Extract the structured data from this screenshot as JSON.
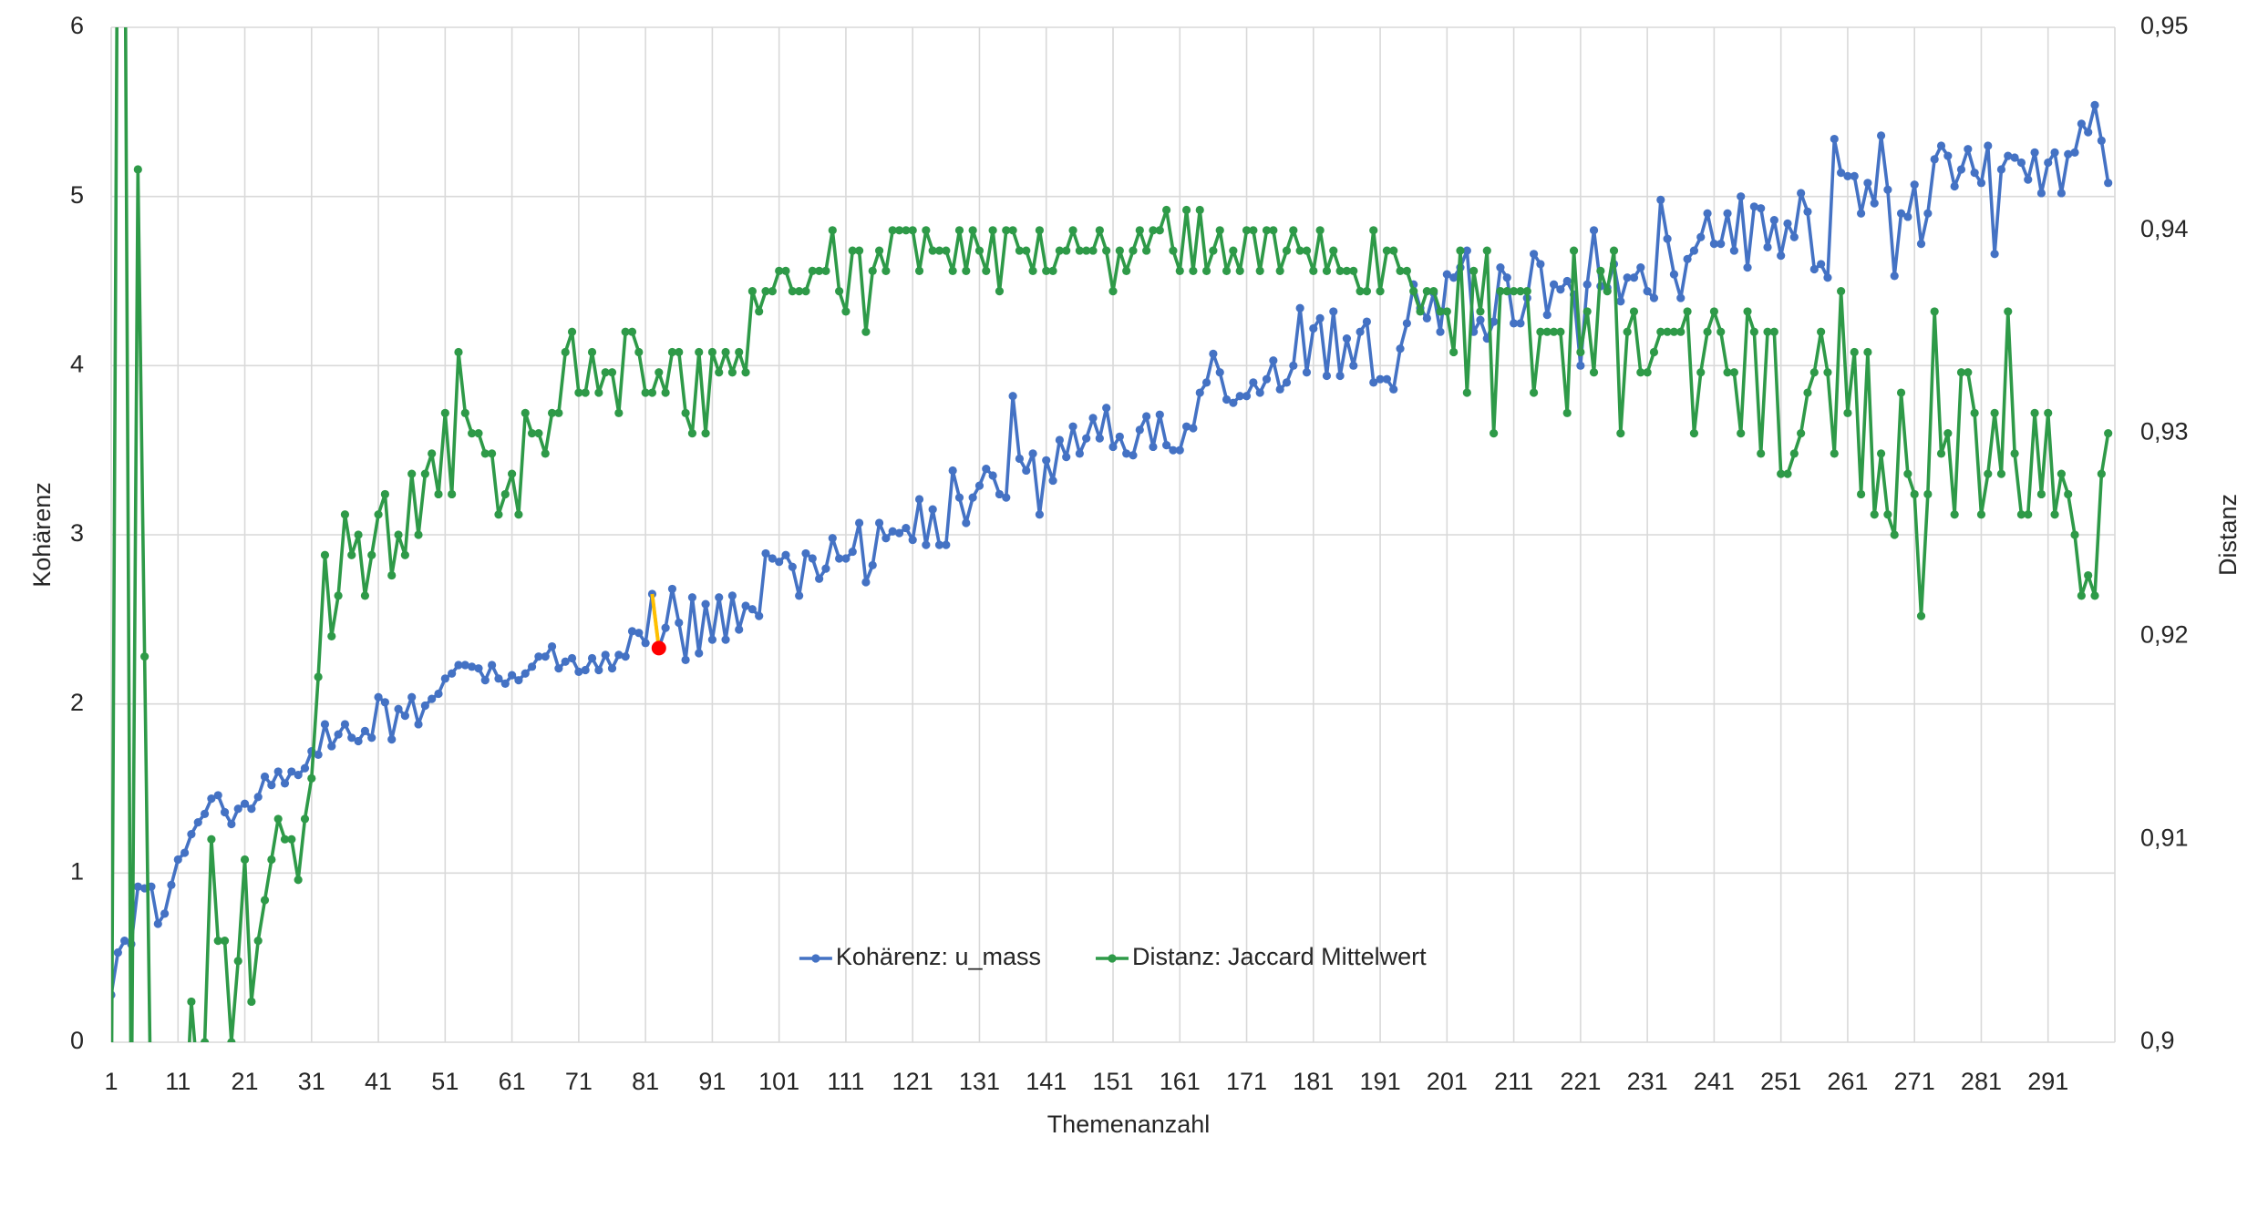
{
  "chart_data": {
    "type": "line",
    "x_label": "Themenanzahl",
    "y_label": "Kohärenz",
    "y2_label": "Distanz",
    "x": [
      1,
      2,
      3,
      4,
      5,
      6,
      7,
      8,
      9,
      10,
      11,
      12,
      13,
      14,
      15,
      16,
      17,
      18,
      19,
      20,
      21,
      22,
      23,
      24,
      25,
      26,
      27,
      28,
      29,
      30,
      31,
      32,
      33,
      34,
      35,
      36,
      37,
      38,
      39,
      40,
      41,
      42,
      43,
      44,
      45,
      46,
      47,
      48,
      49,
      50,
      51,
      52,
      53,
      54,
      55,
      56,
      57,
      58,
      59,
      60,
      61,
      62,
      63,
      64,
      65,
      66,
      67,
      68,
      69,
      70,
      71,
      72,
      73,
      74,
      75,
      76,
      77,
      78,
      79,
      80,
      81,
      82,
      83,
      84,
      85,
      86,
      87,
      88,
      89,
      90,
      91,
      92,
      93,
      94,
      95,
      96,
      97,
      98,
      99,
      100,
      101,
      102,
      103,
      104,
      105,
      106,
      107,
      108,
      109,
      110,
      111,
      112,
      113,
      114,
      115,
      116,
      117,
      118,
      119,
      120,
      121,
      122,
      123,
      124,
      125,
      126,
      127,
      128,
      129,
      130,
      131,
      132,
      133,
      134,
      135,
      136,
      137,
      138,
      139,
      140,
      141,
      142,
      143,
      144,
      145,
      146,
      147,
      148,
      149,
      150,
      151,
      152,
      153,
      154,
      155,
      156,
      157,
      158,
      159,
      160,
      161,
      162,
      163,
      164,
      165,
      166,
      167,
      168,
      169,
      170,
      171,
      172,
      173,
      174,
      175,
      176,
      177,
      178,
      179,
      180,
      181,
      182,
      183,
      184,
      185,
      186,
      187,
      188,
      189,
      190,
      191,
      192,
      193,
      194,
      195,
      196,
      197,
      198,
      199,
      200,
      201,
      202,
      203,
      204,
      205,
      206,
      207,
      208,
      209,
      210,
      211,
      212,
      213,
      214,
      215,
      216,
      217,
      218,
      219,
      220,
      221,
      222,
      223,
      224,
      225,
      226,
      227,
      228,
      229,
      230,
      231,
      232,
      233,
      234,
      235,
      236,
      237,
      238,
      239,
      240,
      241,
      242,
      243,
      244,
      245,
      246,
      247,
      248,
      249,
      250,
      251,
      252,
      253,
      254,
      255,
      256,
      257,
      258,
      259,
      260,
      261,
      262,
      263,
      264,
      265,
      266,
      267,
      268,
      269,
      270,
      271,
      272,
      273,
      274,
      275,
      276,
      277,
      278,
      279,
      280,
      281,
      282,
      283,
      284,
      285,
      286,
      287,
      288,
      289,
      290,
      291,
      292,
      293,
      294,
      295,
      296,
      297,
      298,
      299,
      300
    ],
    "xlim": [
      1,
      301
    ],
    "xticks": [
      1,
      11,
      21,
      31,
      41,
      51,
      61,
      71,
      81,
      91,
      101,
      111,
      121,
      131,
      141,
      151,
      161,
      171,
      181,
      191,
      201,
      211,
      221,
      231,
      241,
      251,
      261,
      271,
      281,
      291
    ],
    "ylim": [
      0,
      6
    ],
    "yticks": [
      0,
      1,
      2,
      3,
      4,
      5,
      6
    ],
    "y2lim": [
      0.9,
      0.95
    ],
    "y2ticks": [
      {
        "value": 0.9,
        "label": "0,9"
      },
      {
        "value": 0.91,
        "label": "0,91"
      },
      {
        "value": 0.92,
        "label": "0,92"
      },
      {
        "value": 0.93,
        "label": "0,93"
      },
      {
        "value": 0.94,
        "label": "0,94"
      },
      {
        "value": 0.95,
        "label": "0,95"
      }
    ],
    "grid": true,
    "legend": "bottom",
    "highlight": {
      "series": 0,
      "index": 82,
      "line_color": "#ffc000",
      "point_color": "#ff0000"
    },
    "series": [
      {
        "name": "Kohärenz: u_mass",
        "color": "#4472c4",
        "values": [
          0.28,
          0.53,
          0.6,
          0.58,
          0.92,
          0.91,
          0.92,
          0.7,
          0.76,
          0.93,
          1.08,
          1.12,
          1.23,
          1.3,
          1.35,
          1.44,
          1.46,
          1.36,
          1.29,
          1.38,
          1.41,
          1.38,
          1.45,
          1.57,
          1.52,
          1.6,
          1.53,
          1.6,
          1.58,
          1.62,
          1.72,
          1.7,
          1.88,
          1.75,
          1.82,
          1.88,
          1.8,
          1.78,
          1.84,
          1.8,
          2.04,
          2.01,
          1.79,
          1.97,
          1.93,
          2.04,
          1.88,
          1.99,
          2.03,
          2.06,
          2.15,
          2.18,
          2.23,
          2.23,
          2.22,
          2.21,
          2.14,
          2.23,
          2.15,
          2.12,
          2.17,
          2.14,
          2.18,
          2.22,
          2.28,
          2.28,
          2.34,
          2.21,
          2.25,
          2.27,
          2.19,
          2.2,
          2.27,
          2.2,
          2.29,
          2.21,
          2.29,
          2.28,
          2.43,
          2.42,
          2.36,
          2.65,
          2.33,
          2.45,
          2.68,
          2.48,
          2.26,
          2.63,
          2.3,
          2.59,
          2.38,
          2.63,
          2.38,
          2.64,
          2.44,
          2.58,
          2.56,
          2.52,
          2.89,
          2.86,
          2.84,
          2.88,
          2.81,
          2.64,
          2.89,
          2.86,
          2.74,
          2.8,
          2.98,
          2.86,
          2.86,
          2.9,
          3.07,
          2.72,
          2.82,
          3.07,
          2.98,
          3.02,
          3.01,
          3.04,
          2.97,
          3.21,
          2.94,
          3.15,
          2.94,
          2.94,
          3.38,
          3.22,
          3.07,
          3.22,
          3.29,
          3.39,
          3.35,
          3.24,
          3.22,
          3.82,
          3.45,
          3.38,
          3.48,
          3.12,
          3.44,
          3.32,
          3.56,
          3.46,
          3.64,
          3.48,
          3.57,
          3.69,
          3.57,
          3.75,
          3.52,
          3.58,
          3.48,
          3.47,
          3.62,
          3.7,
          3.52,
          3.71,
          3.53,
          3.5,
          3.5,
          3.64,
          3.63,
          3.84,
          3.9,
          4.07,
          3.96,
          3.8,
          3.78,
          3.82,
          3.82,
          3.9,
          3.84,
          3.92,
          4.03,
          3.86,
          3.9,
          4.0,
          4.34,
          3.96,
          4.22,
          4.28,
          3.94,
          4.32,
          3.94,
          4.16,
          4.0,
          4.2,
          4.26,
          3.9,
          3.92,
          3.92,
          3.86,
          4.1,
          4.25,
          4.48,
          4.34,
          4.28,
          4.43,
          4.2,
          4.54,
          4.52,
          4.58,
          4.68,
          4.2,
          4.27,
          4.16,
          4.26,
          4.58,
          4.52,
          4.25,
          4.25,
          4.4,
          4.66,
          4.6,
          4.3,
          4.48,
          4.45,
          4.5,
          4.42,
          4.0,
          4.48,
          4.8,
          4.47,
          4.46,
          4.6,
          4.38,
          4.52,
          4.52,
          4.58,
          4.44,
          4.4,
          4.98,
          4.75,
          4.54,
          4.4,
          4.63,
          4.68,
          4.76,
          4.9,
          4.72,
          4.72,
          4.9,
          4.68,
          5.0,
          4.58,
          4.94,
          4.93,
          4.7,
          4.86,
          4.65,
          4.84,
          4.76,
          5.02,
          4.91,
          4.57,
          4.6,
          4.52,
          5.34,
          5.14,
          5.12,
          5.12,
          4.9,
          5.08,
          4.96,
          5.36,
          5.04,
          4.53,
          4.9,
          4.88,
          5.07,
          4.72,
          4.9,
          5.22,
          5.3,
          5.24,
          5.06,
          5.16,
          5.28,
          5.14,
          5.08,
          5.3,
          4.66,
          5.16,
          5.24,
          5.23,
          5.2,
          5.1,
          5.26,
          5.02,
          5.2,
          5.26,
          5.02,
          5.25,
          5.26,
          5.43,
          5.38,
          5.54,
          5.33,
          5.08
        ]
      },
      {
        "name": "Distanz: Jaccard Mittelwert",
        "color": "#2e9a48",
        "axis": "y2",
        "values": [
          0.895,
          0.96,
          0.96,
          0.895,
          0.943,
          0.919,
          0.895,
          0.895,
          0.895,
          0.895,
          0.895,
          0.895,
          0.902,
          0.898,
          0.9,
          0.91,
          0.905,
          0.905,
          0.9,
          0.904,
          0.909,
          0.902,
          0.905,
          0.907,
          0.909,
          0.911,
          0.91,
          0.91,
          0.908,
          0.911,
          0.913,
          0.918,
          0.924,
          0.92,
          0.922,
          0.926,
          0.924,
          0.925,
          0.922,
          0.924,
          0.926,
          0.927,
          0.923,
          0.925,
          0.924,
          0.928,
          0.925,
          0.928,
          0.929,
          0.927,
          0.931,
          0.927,
          0.934,
          0.931,
          0.93,
          0.93,
          0.929,
          0.929,
          0.926,
          0.927,
          0.928,
          0.926,
          0.931,
          0.93,
          0.93,
          0.929,
          0.931,
          0.931,
          0.934,
          0.935,
          0.932,
          0.932,
          0.934,
          0.932,
          0.933,
          0.933,
          0.931,
          0.935,
          0.935,
          0.934,
          0.932,
          0.932,
          0.933,
          0.932,
          0.934,
          0.934,
          0.931,
          0.93,
          0.934,
          0.93,
          0.934,
          0.933,
          0.934,
          0.933,
          0.934,
          0.933,
          0.937,
          0.936,
          0.937,
          0.937,
          0.938,
          0.938,
          0.937,
          0.937,
          0.937,
          0.938,
          0.938,
          0.938,
          0.94,
          0.937,
          0.936,
          0.939,
          0.939,
          0.935,
          0.938,
          0.939,
          0.938,
          0.94,
          0.94,
          0.94,
          0.94,
          0.938,
          0.94,
          0.939,
          0.939,
          0.939,
          0.938,
          0.94,
          0.938,
          0.94,
          0.939,
          0.938,
          0.94,
          0.937,
          0.94,
          0.94,
          0.939,
          0.939,
          0.938,
          0.94,
          0.938,
          0.938,
          0.939,
          0.939,
          0.94,
          0.939,
          0.939,
          0.939,
          0.94,
          0.939,
          0.937,
          0.939,
          0.938,
          0.939,
          0.94,
          0.939,
          0.94,
          0.94,
          0.941,
          0.939,
          0.938,
          0.941,
          0.938,
          0.941,
          0.938,
          0.939,
          0.94,
          0.938,
          0.939,
          0.938,
          0.94,
          0.94,
          0.938,
          0.94,
          0.94,
          0.938,
          0.939,
          0.94,
          0.939,
          0.939,
          0.938,
          0.94,
          0.938,
          0.939,
          0.938,
          0.938,
          0.938,
          0.937,
          0.937,
          0.94,
          0.937,
          0.939,
          0.939,
          0.938,
          0.938,
          0.937,
          0.936,
          0.937,
          0.937,
          0.936,
          0.936,
          0.934,
          0.939,
          0.932,
          0.938,
          0.936,
          0.939,
          0.93,
          0.937,
          0.937,
          0.937,
          0.937,
          0.937,
          0.932,
          0.935,
          0.935,
          0.935,
          0.935,
          0.931,
          0.939,
          0.934,
          0.936,
          0.933,
          0.938,
          0.937,
          0.939,
          0.93,
          0.935,
          0.936,
          0.933,
          0.933,
          0.934,
          0.935,
          0.935,
          0.935,
          0.935,
          0.936,
          0.93,
          0.933,
          0.935,
          0.936,
          0.935,
          0.933,
          0.933,
          0.93,
          0.936,
          0.935,
          0.929,
          0.935,
          0.935,
          0.928,
          0.928,
          0.929,
          0.93,
          0.932,
          0.933,
          0.935,
          0.933,
          0.929,
          0.937,
          0.931,
          0.934,
          0.927,
          0.934,
          0.926,
          0.929,
          0.926,
          0.925,
          0.932,
          0.928,
          0.927,
          0.921,
          0.927,
          0.936,
          0.929,
          0.93,
          0.926,
          0.933,
          0.933,
          0.931,
          0.926,
          0.928,
          0.931,
          0.928,
          0.936,
          0.929,
          0.926,
          0.926,
          0.931,
          0.927,
          0.931,
          0.926,
          0.928,
          0.927,
          0.925,
          0.922,
          0.923,
          0.922,
          0.928,
          0.93
        ]
      }
    ]
  }
}
